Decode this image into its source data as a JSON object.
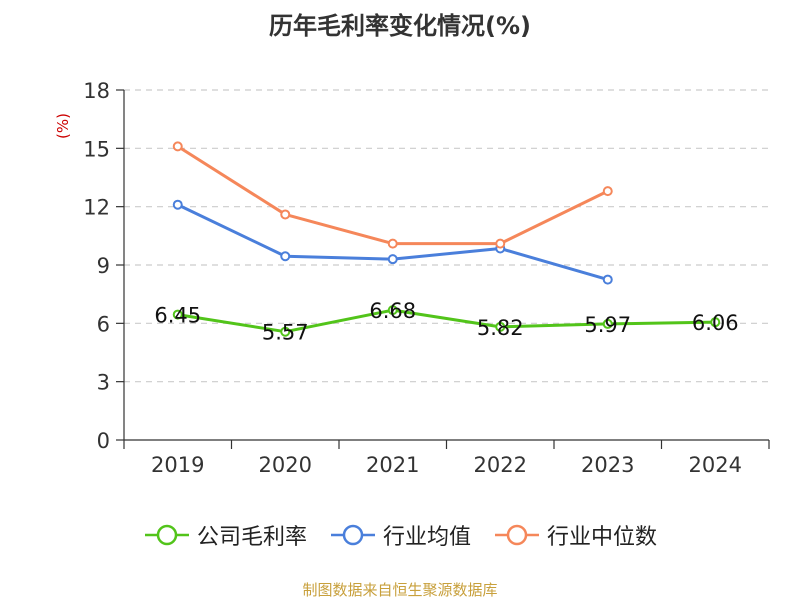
{
  "chart_data": {
    "type": "line",
    "title": "历年毛利率变化情况(%)",
    "ylabel": "(%)",
    "xlabel": "",
    "categories": [
      "2019",
      "2020",
      "2021",
      "2022",
      "2023",
      "2024"
    ],
    "ylim": [
      0,
      18
    ],
    "yticks": [
      0,
      3,
      6,
      9,
      12,
      15,
      18
    ],
    "grid": true,
    "legend_position": "bottom",
    "series": [
      {
        "name": "公司毛利率",
        "color": "#52c41a",
        "values": [
          6.45,
          5.57,
          6.68,
          5.82,
          5.97,
          6.06
        ],
        "labels": [
          "6.45",
          "5.57",
          "6.68",
          "5.82",
          "5.97",
          "6.06"
        ]
      },
      {
        "name": "行业均值",
        "color": "#4a7fdb",
        "values": [
          12.1,
          9.45,
          9.3,
          9.85,
          8.25,
          null
        ]
      },
      {
        "name": "行业中位数",
        "color": "#f5875a",
        "values": [
          15.1,
          11.6,
          10.1,
          10.1,
          12.8,
          null
        ]
      }
    ]
  },
  "source": {
    "text": "制图数据来自恒生聚源数据库",
    "color": "#c8a03c"
  }
}
